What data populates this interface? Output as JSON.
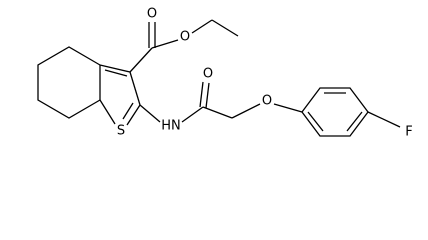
{
  "atoms": {
    "carbonyl_oxygen": "O",
    "ester_oxygen": "O",
    "amide_oxygen": "O",
    "ether_oxygen": "O",
    "sulfur": "S",
    "amine": "HN",
    "fluorine": "F"
  }
}
